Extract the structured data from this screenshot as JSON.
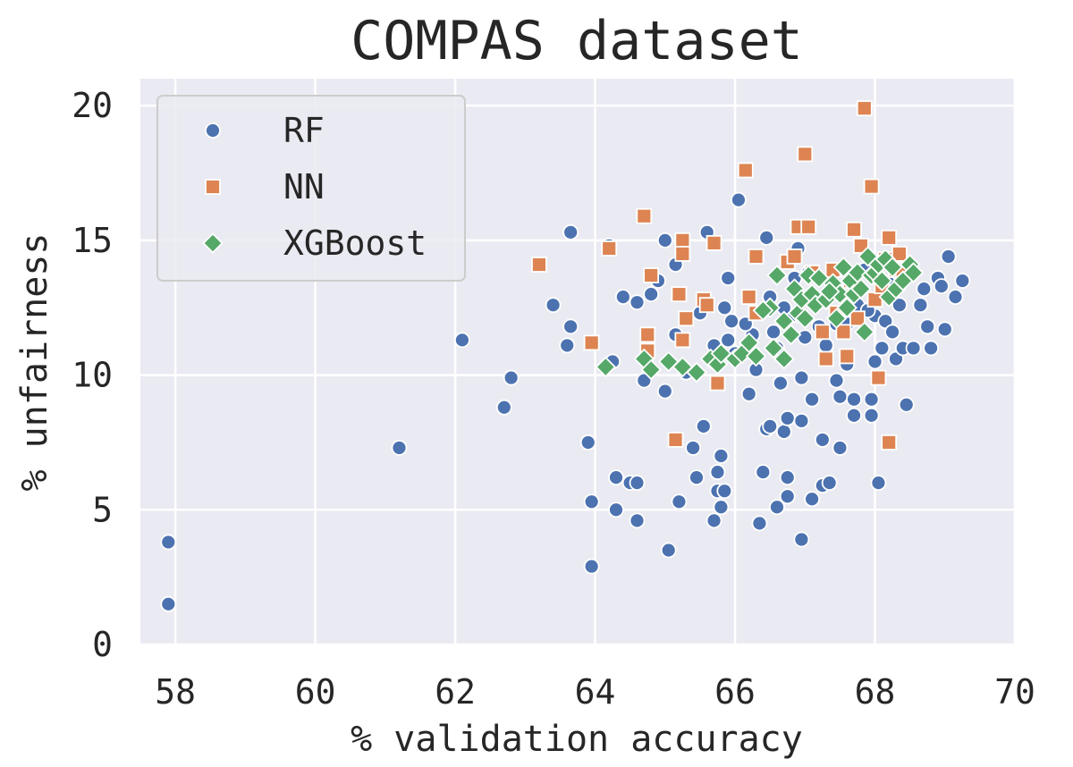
{
  "chart_data": {
    "type": "scatter",
    "title": "COMPAS dataset",
    "xlabel": "% validation accuracy",
    "ylabel": "% unfairness",
    "xlim": [
      57.5,
      70
    ],
    "ylim": [
      0,
      21
    ],
    "xticks": [
      58,
      60,
      62,
      64,
      66,
      68,
      70
    ],
    "yticks": [
      0,
      5,
      10,
      15,
      20
    ],
    "grid": true,
    "legend_position": "top-left",
    "background": "#eaeaf2",
    "series": [
      {
        "name": "RF",
        "marker": "circle",
        "color": "#4c72b0",
        "points": [
          [
            57.9,
            3.8
          ],
          [
            57.9,
            1.5
          ],
          [
            61.2,
            7.3
          ],
          [
            62.1,
            11.3
          ],
          [
            62.7,
            8.8
          ],
          [
            62.8,
            9.9
          ],
          [
            63.4,
            12.6
          ],
          [
            63.6,
            11.1
          ],
          [
            63.65,
            15.3
          ],
          [
            63.65,
            11.8
          ],
          [
            63.9,
            7.5
          ],
          [
            63.95,
            5.3
          ],
          [
            63.95,
            2.9
          ],
          [
            64.2,
            14.8
          ],
          [
            64.25,
            10.5
          ],
          [
            64.3,
            6.2
          ],
          [
            64.3,
            5.0
          ],
          [
            64.4,
            12.9
          ],
          [
            64.5,
            6.0
          ],
          [
            64.6,
            6.0
          ],
          [
            64.6,
            4.6
          ],
          [
            64.6,
            12.7
          ],
          [
            64.7,
            9.8
          ],
          [
            64.8,
            13.0
          ],
          [
            64.9,
            13.5
          ],
          [
            65.0,
            15.0
          ],
          [
            65.0,
            9.4
          ],
          [
            65.05,
            3.5
          ],
          [
            65.15,
            14.1
          ],
          [
            65.15,
            11.5
          ],
          [
            65.2,
            5.3
          ],
          [
            65.3,
            10.1
          ],
          [
            65.4,
            7.3
          ],
          [
            65.45,
            6.2
          ],
          [
            65.5,
            12.3
          ],
          [
            65.55,
            8.1
          ],
          [
            65.6,
            15.3
          ],
          [
            65.7,
            4.6
          ],
          [
            65.7,
            11.1
          ],
          [
            65.75,
            6.4
          ],
          [
            65.75,
            5.7
          ],
          [
            65.8,
            7.0
          ],
          [
            65.8,
            5.1
          ],
          [
            65.85,
            12.5
          ],
          [
            65.85,
            5.7
          ],
          [
            65.9,
            13.6
          ],
          [
            65.9,
            11.3
          ],
          [
            66.0,
            10.8
          ],
          [
            66.05,
            16.5
          ],
          [
            66.2,
            9.3
          ],
          [
            66.25,
            11.5
          ],
          [
            66.3,
            10.2
          ],
          [
            66.35,
            4.5
          ],
          [
            66.4,
            6.4
          ],
          [
            66.45,
            15.1
          ],
          [
            66.45,
            8.0
          ],
          [
            66.5,
            8.1
          ],
          [
            66.5,
            12.9
          ],
          [
            66.6,
            5.1
          ],
          [
            66.6,
            11.0
          ],
          [
            66.65,
            9.7
          ],
          [
            66.7,
            7.9
          ],
          [
            66.75,
            8.4
          ],
          [
            66.75,
            6.2
          ],
          [
            66.75,
            5.5
          ],
          [
            66.8,
            12.2
          ],
          [
            66.85,
            13.6
          ],
          [
            66.9,
            14.7
          ],
          [
            66.95,
            8.3
          ],
          [
            66.95,
            9.9
          ],
          [
            66.95,
            3.9
          ],
          [
            67.0,
            11.4
          ],
          [
            67.05,
            13.8
          ],
          [
            67.1,
            9.1
          ],
          [
            67.1,
            5.4
          ],
          [
            67.15,
            12.7
          ],
          [
            67.2,
            11.8
          ],
          [
            67.25,
            7.6
          ],
          [
            67.25,
            5.9
          ],
          [
            67.35,
            6.0
          ],
          [
            67.45,
            11.9
          ],
          [
            67.45,
            9.8
          ],
          [
            67.5,
            9.2
          ],
          [
            67.5,
            7.3
          ],
          [
            67.6,
            10.4
          ],
          [
            67.7,
            9.1
          ],
          [
            67.7,
            8.5
          ],
          [
            67.75,
            12.6
          ],
          [
            67.85,
            13.9
          ],
          [
            67.95,
            9.1
          ],
          [
            67.95,
            8.5
          ],
          [
            68.0,
            12.2
          ],
          [
            68.0,
            10.5
          ],
          [
            68.05,
            6.0
          ],
          [
            68.1,
            11.0
          ],
          [
            68.15,
            12.0
          ],
          [
            68.2,
            13.4
          ],
          [
            68.3,
            10.6
          ],
          [
            68.35,
            12.6
          ],
          [
            68.4,
            11.0
          ],
          [
            68.45,
            8.9
          ],
          [
            68.55,
            11.0
          ],
          [
            68.65,
            12.6
          ],
          [
            68.7,
            13.2
          ],
          [
            68.75,
            11.8
          ],
          [
            68.8,
            11.0
          ],
          [
            68.9,
            13.6
          ],
          [
            68.95,
            13.3
          ],
          [
            69.0,
            11.7
          ],
          [
            69.05,
            14.4
          ],
          [
            69.15,
            12.9
          ],
          [
            69.25,
            13.5
          ],
          [
            65.95,
            12.0
          ],
          [
            66.15,
            11.9
          ],
          [
            66.55,
            11.6
          ],
          [
            66.7,
            12.5
          ],
          [
            67.3,
            11.1
          ],
          [
            67.6,
            11.9
          ],
          [
            67.9,
            12.4
          ],
          [
            68.25,
            11.6
          ]
        ]
      },
      {
        "name": "NN",
        "marker": "square",
        "color": "#dd8452",
        "points": [
          [
            63.2,
            14.1
          ],
          [
            63.95,
            11.2
          ],
          [
            64.2,
            14.7
          ],
          [
            64.7,
            15.9
          ],
          [
            64.75,
            11.5
          ],
          [
            64.75,
            10.9
          ],
          [
            64.8,
            13.7
          ],
          [
            65.15,
            7.6
          ],
          [
            65.2,
            13.0
          ],
          [
            65.25,
            15.0
          ],
          [
            65.25,
            14.5
          ],
          [
            65.25,
            11.3
          ],
          [
            65.3,
            12.1
          ],
          [
            65.55,
            12.8
          ],
          [
            65.6,
            12.6
          ],
          [
            65.7,
            14.9
          ],
          [
            65.75,
            9.7
          ],
          [
            66.15,
            17.6
          ],
          [
            66.2,
            12.9
          ],
          [
            66.3,
            12.3
          ],
          [
            66.3,
            14.4
          ],
          [
            66.75,
            14.2
          ],
          [
            66.85,
            14.4
          ],
          [
            66.9,
            15.5
          ],
          [
            67.0,
            18.2
          ],
          [
            67.05,
            15.5
          ],
          [
            67.1,
            13.8
          ],
          [
            67.25,
            11.6
          ],
          [
            67.3,
            10.6
          ],
          [
            67.4,
            13.9
          ],
          [
            67.55,
            11.6
          ],
          [
            67.6,
            10.7
          ],
          [
            67.65,
            13.5
          ],
          [
            67.7,
            15.4
          ],
          [
            67.8,
            14.8
          ],
          [
            67.85,
            19.9
          ],
          [
            67.95,
            17.0
          ],
          [
            68.0,
            12.8
          ],
          [
            68.05,
            9.9
          ],
          [
            68.15,
            14.3
          ],
          [
            68.2,
            15.1
          ],
          [
            68.2,
            7.5
          ],
          [
            68.3,
            13.9
          ],
          [
            68.35,
            14.5
          ],
          [
            68.4,
            13.8
          ],
          [
            67.45,
            12.3
          ],
          [
            67.75,
            12.1
          ],
          [
            68.1,
            13.3
          ]
        ]
      },
      {
        "name": "XGBoost",
        "marker": "diamond",
        "color": "#55a868",
        "points": [
          [
            64.15,
            10.3
          ],
          [
            64.7,
            10.6
          ],
          [
            64.8,
            10.2
          ],
          [
            65.05,
            10.5
          ],
          [
            65.25,
            10.3
          ],
          [
            65.45,
            10.1
          ],
          [
            65.65,
            10.6
          ],
          [
            65.75,
            10.4
          ],
          [
            65.8,
            10.8
          ],
          [
            66.0,
            10.6
          ],
          [
            66.1,
            10.8
          ],
          [
            66.2,
            11.2
          ],
          [
            66.3,
            10.7
          ],
          [
            66.5,
            12.5
          ],
          [
            66.55,
            11.0
          ],
          [
            66.6,
            13.7
          ],
          [
            66.7,
            12.0
          ],
          [
            66.7,
            10.6
          ],
          [
            66.8,
            11.5
          ],
          [
            66.85,
            13.2
          ],
          [
            66.9,
            12.3
          ],
          [
            66.95,
            12.8
          ],
          [
            67.05,
            13.7
          ],
          [
            67.1,
            13.0
          ],
          [
            67.15,
            12.6
          ],
          [
            67.2,
            13.6
          ],
          [
            67.3,
            12.8
          ],
          [
            67.4,
            13.4
          ],
          [
            67.45,
            12.1
          ],
          [
            67.5,
            13.0
          ],
          [
            67.55,
            14.0
          ],
          [
            67.6,
            12.5
          ],
          [
            67.65,
            13.5
          ],
          [
            67.7,
            13.0
          ],
          [
            67.75,
            13.8
          ],
          [
            67.85,
            11.6
          ],
          [
            67.9,
            14.4
          ],
          [
            67.95,
            13.7
          ],
          [
            68.0,
            13.8
          ],
          [
            68.05,
            14.1
          ],
          [
            68.1,
            13.5
          ],
          [
            68.15,
            14.3
          ],
          [
            68.2,
            12.9
          ],
          [
            68.25,
            14.0
          ],
          [
            68.3,
            13.2
          ],
          [
            68.4,
            13.5
          ],
          [
            68.5,
            14.1
          ],
          [
            68.55,
            13.8
          ],
          [
            66.4,
            12.4
          ],
          [
            67.0,
            12.1
          ],
          [
            67.35,
            13.1
          ],
          [
            67.8,
            13.2
          ]
        ]
      }
    ]
  }
}
